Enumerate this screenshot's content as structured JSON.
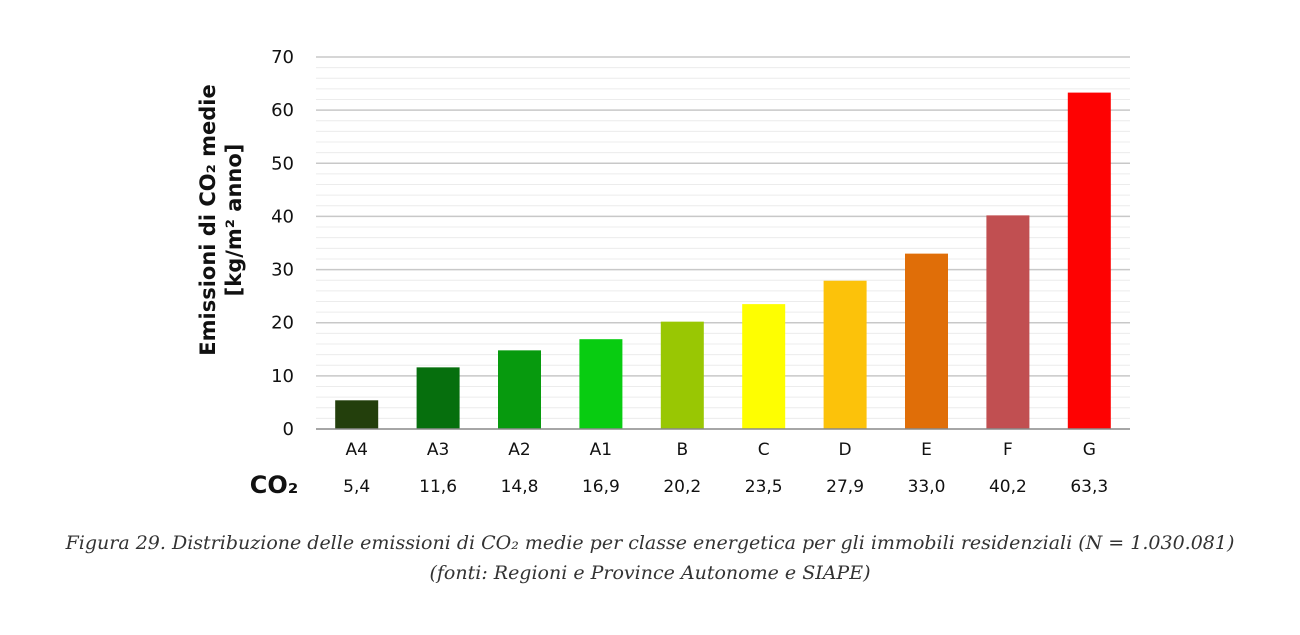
{
  "chart_data": {
    "type": "bar",
    "categories": [
      "A4",
      "A3",
      "A2",
      "A1",
      "B",
      "C",
      "D",
      "E",
      "F",
      "G"
    ],
    "values": [
      5.4,
      11.6,
      14.8,
      16.9,
      20.2,
      23.5,
      27.9,
      33.0,
      40.2,
      63.3
    ],
    "value_labels": [
      "5,4",
      "11,6",
      "14,8",
      "16,9",
      "20,2",
      "23,5",
      "27,9",
      "33,0",
      "40,2",
      "63,3"
    ],
    "colors": [
      "#233f0c",
      "#066f0d",
      "#079a0e",
      "#08cc11",
      "#99c703",
      "#fefe01",
      "#fcc20a",
      "#e06e08",
      "#c14f51",
      "#fe0202"
    ],
    "ylabel_line1": "Emissioni di CO₂ medie",
    "ylabel_line2": "[kg/m² anno]",
    "row_label": "CO₂",
    "ylim": [
      0,
      70
    ],
    "yticks": [
      0,
      10,
      20,
      30,
      40,
      50,
      60,
      70
    ],
    "grid": true
  },
  "caption": {
    "line1": "Figura 29. Distribuzione delle emissioni di CO₂ medie per classe energetica per gli immobili residenziali (N = 1.030.081)",
    "line2": "(fonti: Regioni e Province Autonome e SIAPE)"
  }
}
